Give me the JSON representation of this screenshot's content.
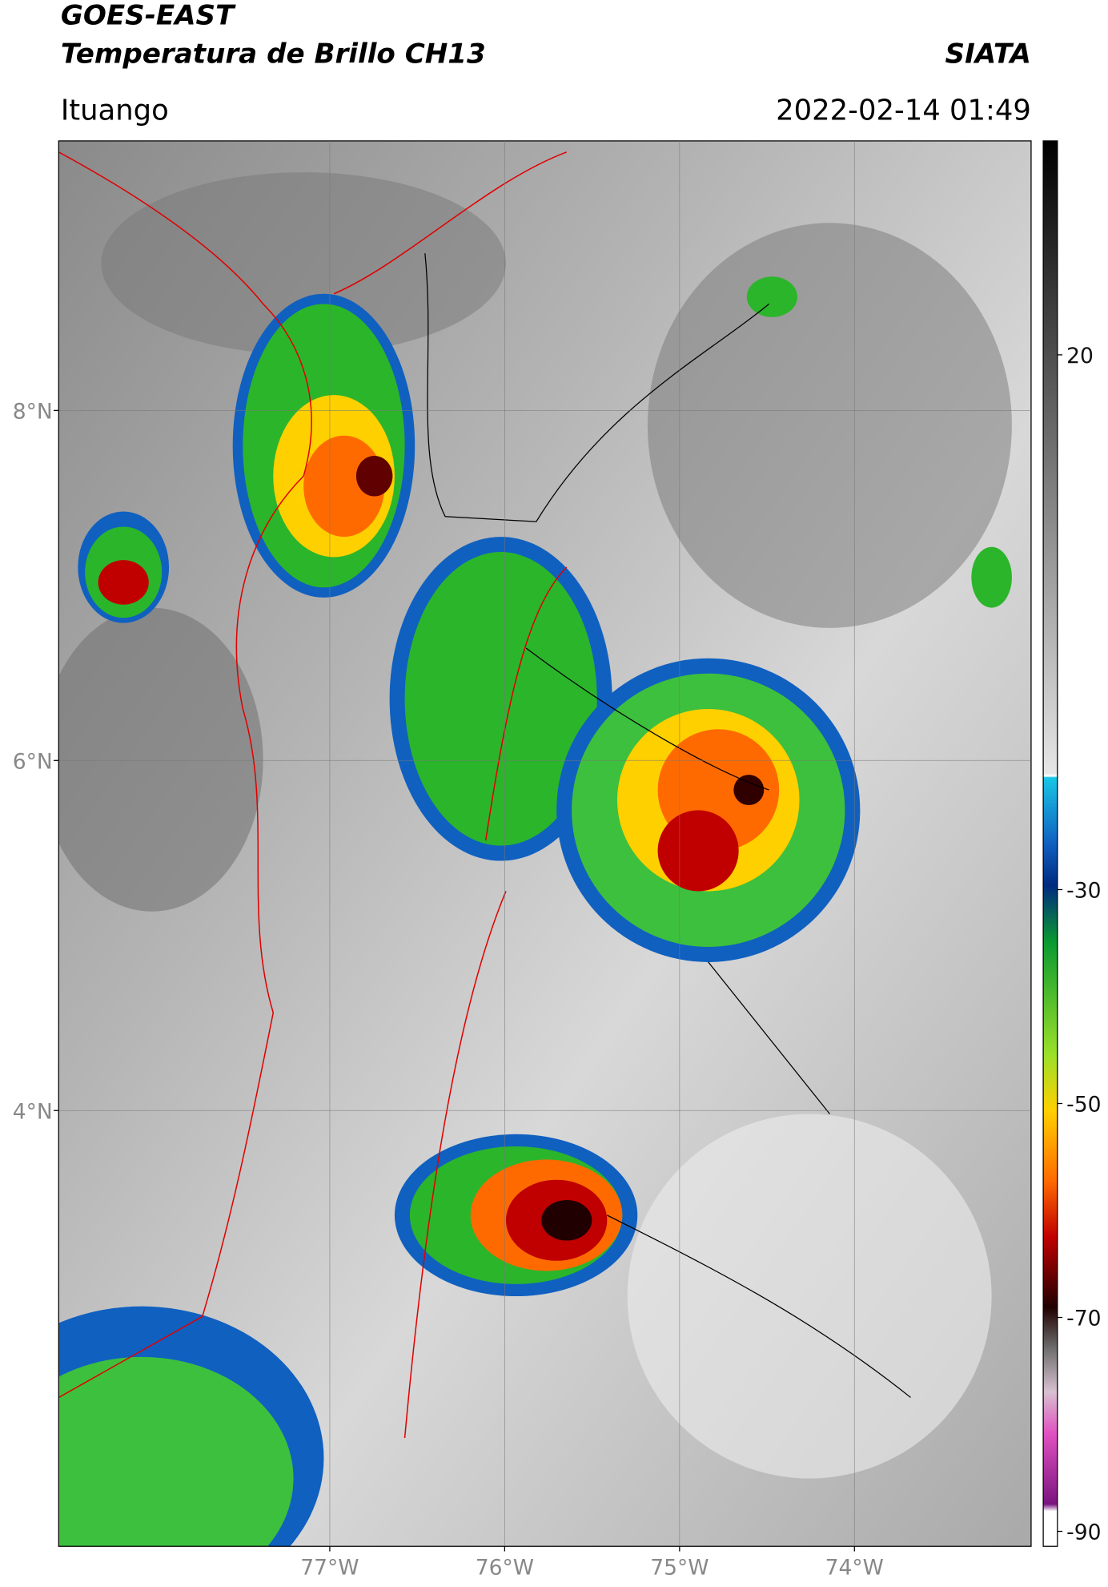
{
  "header": {
    "title_line1": "GOES-EAST",
    "title_line2": "Temperatura de Brillo CH13",
    "source": "SIATA",
    "location": "Ituango",
    "datetime": "2022-02-14 01:49"
  },
  "map": {
    "lat_range": [
      1.51,
      9.54
    ],
    "lon_range": [
      -78.55,
      -72.99
    ],
    "lat_ticks": [
      {
        "value": 8,
        "label": "8°N"
      },
      {
        "value": 6,
        "label": "6°N"
      },
      {
        "value": 4,
        "label": "4°N"
      }
    ],
    "lon_ticks": [
      {
        "value": -77,
        "label": "77°W"
      },
      {
        "value": -76,
        "label": "76°W"
      },
      {
        "value": -75,
        "label": "75°W"
      },
      {
        "value": -74,
        "label": "74°W"
      }
    ]
  },
  "colorbar": {
    "lim": [
      -91.4,
      40
    ],
    "ticks": [
      20,
      -30,
      -50,
      -70,
      -90
    ]
  }
}
